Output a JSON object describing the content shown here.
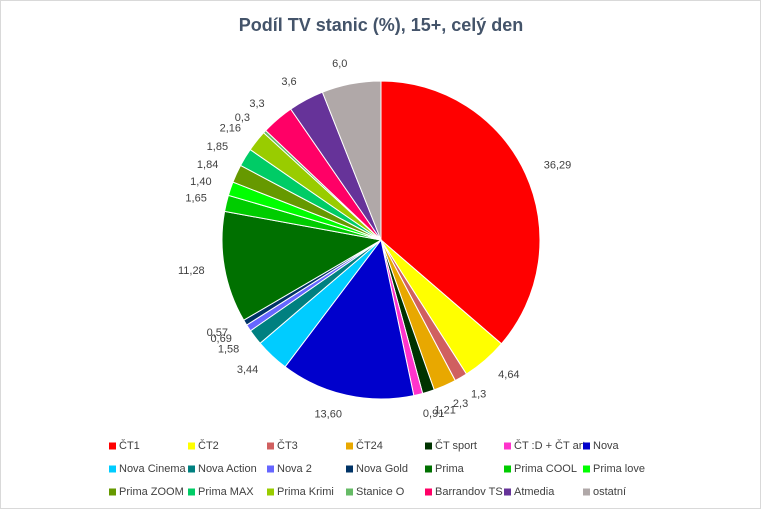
{
  "chart_data": {
    "type": "pie",
    "title": "Podíl TV stanic (%), 15+, celý den",
    "categories": [
      "ČT1",
      "ČT2",
      "ČT3",
      "ČT24",
      "ČT sport",
      "ČT :D + ČT art",
      "Nova",
      "Nova Cinema",
      "Nova Action",
      "Nova 2",
      "Nova Gold",
      "Prima",
      "Prima COOL",
      "Prima love",
      "Prima ZOOM",
      "Prima MAX",
      "Prima Krimi",
      "Stanice O",
      "Barrandov TS",
      "Atmedia",
      "ostatní"
    ],
    "values": [
      36.29,
      4.64,
      1.3,
      2.3,
      1.21,
      0.91,
      13.6,
      3.44,
      1.58,
      0.69,
      0.57,
      11.28,
      1.65,
      1.4,
      1.84,
      1.85,
      2.16,
      0.3,
      3.3,
      3.6,
      6.0
    ],
    "value_labels": [
      "36,29",
      "4,64",
      "1,3",
      "2,3",
      "1,21",
      "0,91",
      "13,60",
      "3,44",
      "1,58",
      "0,69",
      "0,57",
      "11,28",
      "1,65",
      "1,40",
      "1,84",
      "1,85",
      "2,16",
      "0,3",
      "3,3",
      "3,6",
      "6,0"
    ],
    "colors": [
      "#ff0000",
      "#ffff00",
      "#d06060",
      "#e8a800",
      "#003300",
      "#ff33cc",
      "#0000cc",
      "#00ccff",
      "#008080",
      "#6666ff",
      "#003366",
      "#007000",
      "#00cc00",
      "#00ff00",
      "#669900",
      "#00cc66",
      "#99cc00",
      "#66bb66",
      "#ff0066",
      "#663399",
      "#b0a8a8"
    ]
  }
}
